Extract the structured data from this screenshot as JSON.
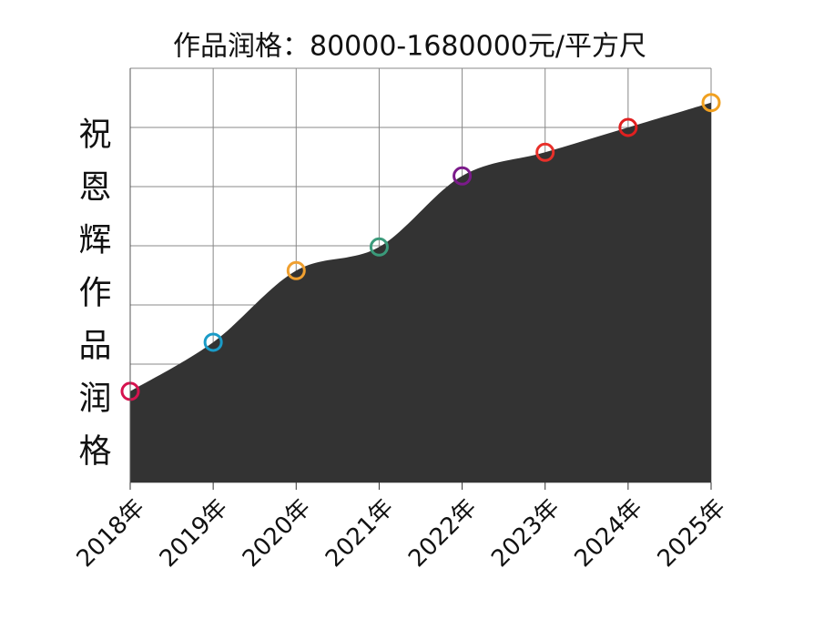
{
  "chart_data": {
    "type": "area",
    "title": "作品润格：80000-1680000元/平方尺",
    "ylabel": "祝恩辉作品润格",
    "categories": [
      "2018年",
      "2019年",
      "2020年",
      "2021年",
      "2022年",
      "2023年",
      "2024年",
      "2025年"
    ],
    "values": [
      1.54,
      2.37,
      3.58,
      3.98,
      5.18,
      5.58,
      6.0,
      6.42
    ],
    "color": "#333333",
    "marker_colors": [
      "#d6134f",
      "#1a9bc7",
      "#f0a030",
      "#3a9a7a",
      "#7b1a8a",
      "#e8302a",
      "#e02020",
      "#f0a020"
    ],
    "ylim": [
      0,
      7
    ],
    "yticks": [
      0,
      1,
      2,
      3,
      4,
      5,
      6,
      7
    ],
    "grid": true
  }
}
